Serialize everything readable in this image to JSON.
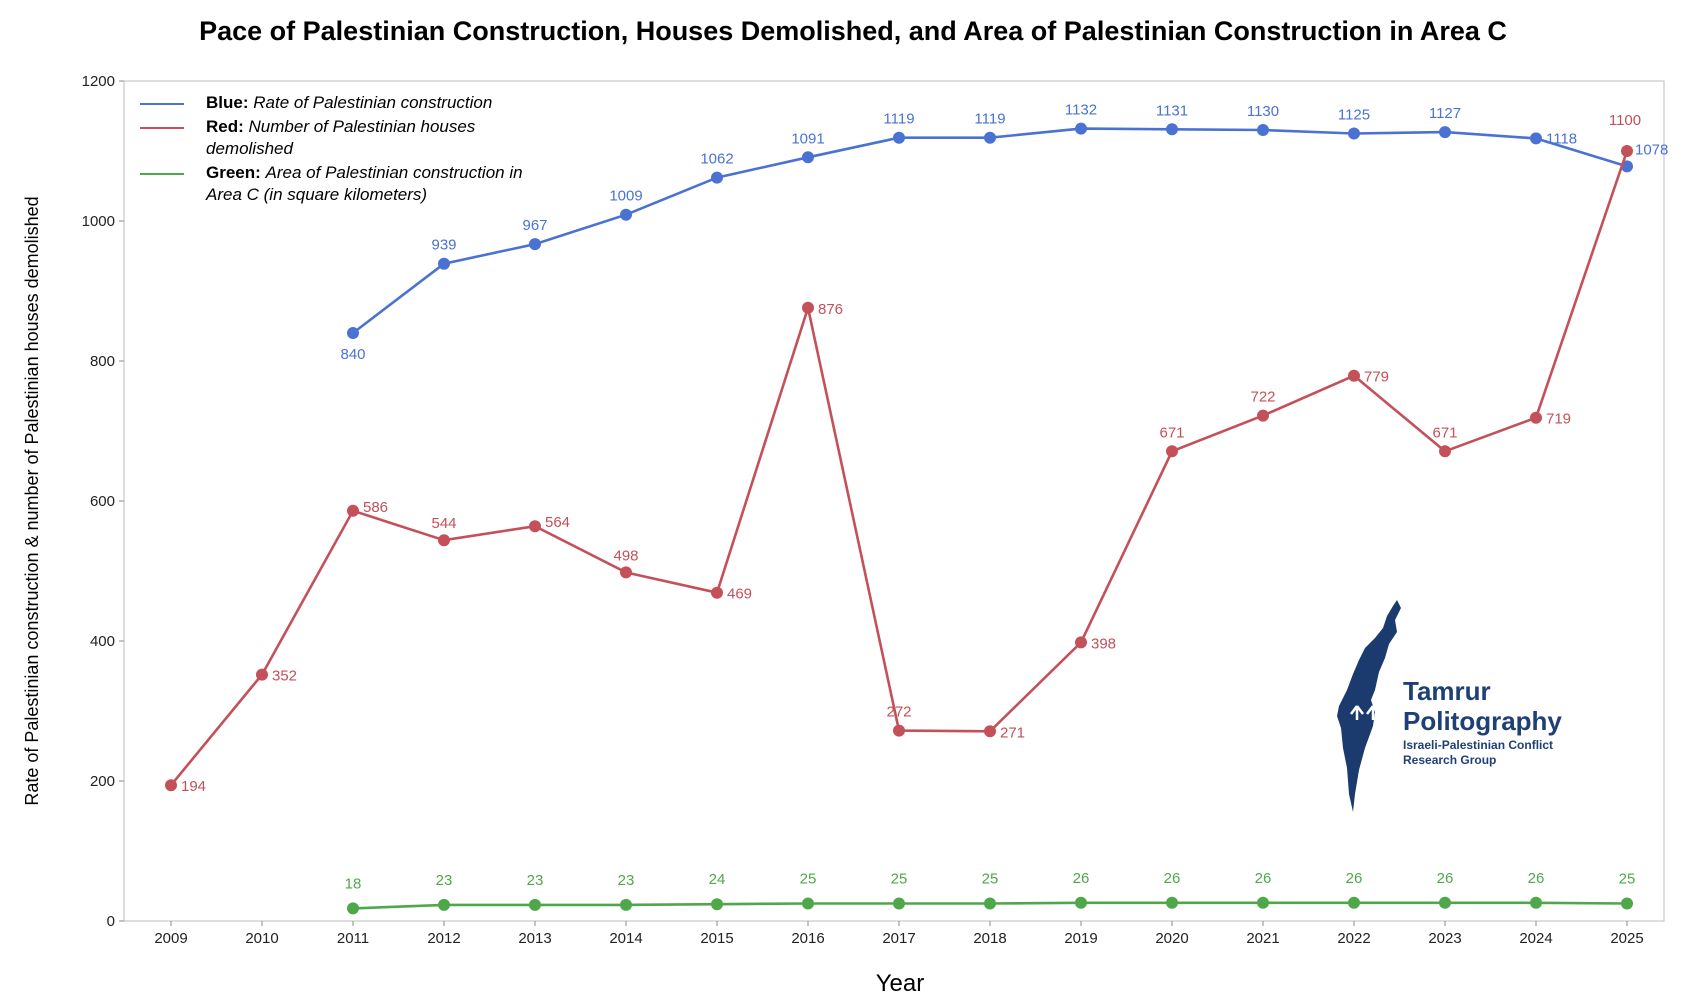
{
  "title": "Pace of Palestinian Construction, Houses Demolished, and Area of Palestinian Construction in Area C",
  "legend": {
    "blue": {
      "key": "Blue:",
      "text": "Rate of Palestinian construction",
      "color": "#4a72d3"
    },
    "red": {
      "key": "Red:",
      "text": "Number of Palestinian houses demolished",
      "color": "#c4505a"
    },
    "green": {
      "key": "Green:",
      "text": "Area of Palestinian construction in Area C (in square kilometers)",
      "color": "#4ea84a"
    }
  },
  "logo": {
    "name_line1": "Tamrur",
    "name_line2": "Politography",
    "subtitle": "Israeli-Palestinian Conflict Research Group",
    "color": "#1b3a6d"
  },
  "chart_data": {
    "type": "line",
    "title": "Pace of Palestinian Construction, Houses Demolished, and Area of Palestinian Construction in Area C",
    "xlabel": "Year",
    "ylabel": "Rate of Palestinian construction & number of Palestinian houses demolished",
    "ylim": [
      0,
      1200
    ],
    "yticks": [
      0,
      200,
      400,
      600,
      800,
      1000,
      1200
    ],
    "categories": [
      "2009",
      "2010",
      "2011",
      "2012",
      "2013",
      "2014",
      "2015",
      "2016",
      "2017",
      "2018",
      "2019",
      "2020",
      "2021",
      "2022",
      "2023",
      "2024",
      "2025"
    ],
    "series": [
      {
        "name": "Rate of Palestinian construction",
        "color": "#4a72d3",
        "values": [
          null,
          null,
          840,
          939,
          967,
          1009,
          1062,
          1091,
          1119,
          1119,
          1132,
          1131,
          1130,
          1125,
          1127,
          1118,
          1078
        ]
      },
      {
        "name": "Number of Palestinian houses demolished",
        "color": "#c4505a",
        "values": [
          194,
          352,
          586,
          544,
          564,
          498,
          469,
          876,
          272,
          271,
          398,
          671,
          722,
          779,
          671,
          719,
          1100
        ]
      },
      {
        "name": "Area of Palestinian construction in Area C (in square kilometers)",
        "color": "#4ea84a",
        "values": [
          null,
          null,
          18,
          23,
          23,
          23,
          24,
          25,
          25,
          25,
          26,
          26,
          26,
          26,
          26,
          26,
          25
        ]
      }
    ]
  }
}
